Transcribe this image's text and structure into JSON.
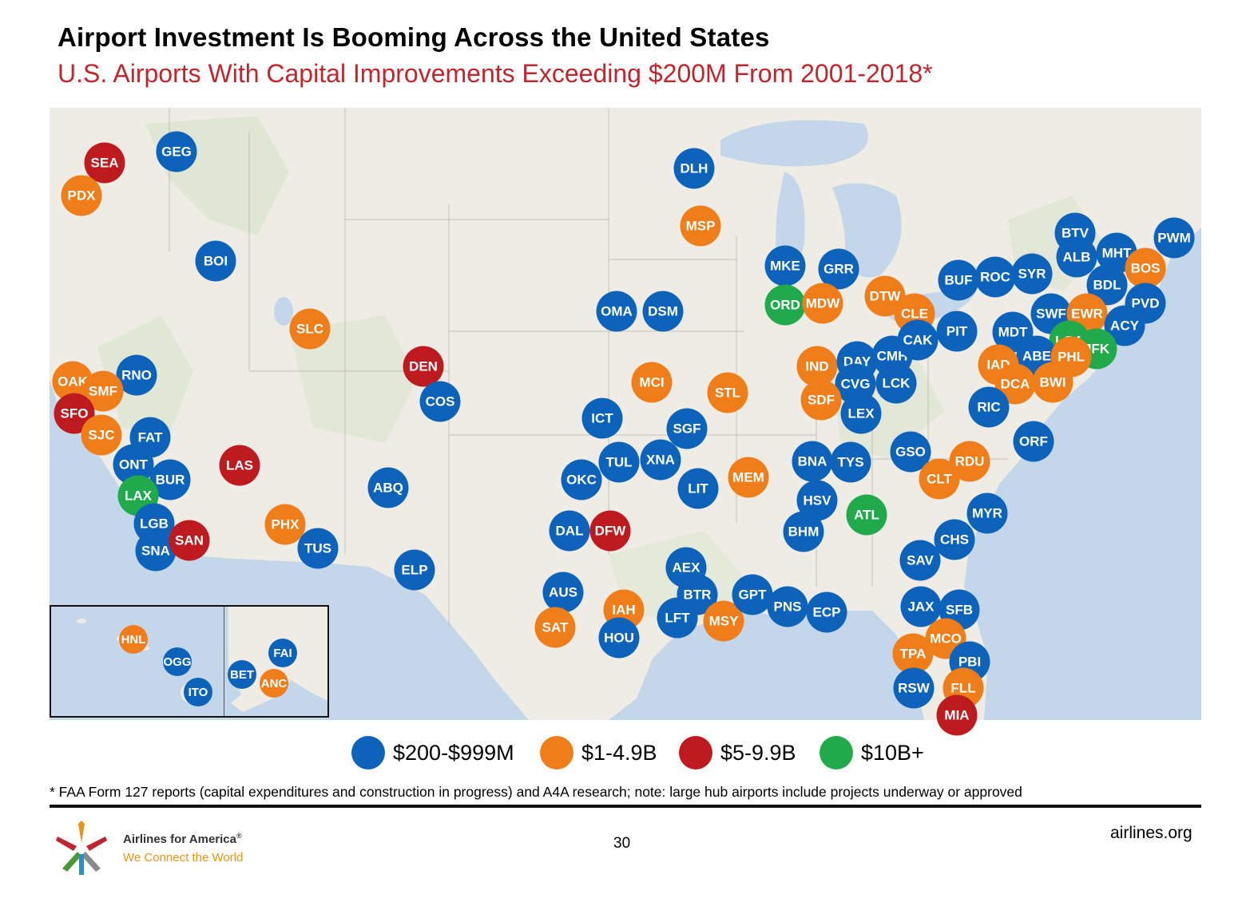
{
  "title": "Airport Investment Is Booming Across the United States",
  "subtitle": "U.S. Airports With Capital Improvements Exceeding $200M From 2001-2018*",
  "categories": {
    "blue": {
      "label": "$200-$999M",
      "color": "#0d63b9"
    },
    "orange": {
      "label": "$1-4.9B",
      "color": "#ef7d1a"
    },
    "red": {
      "label": "$5-9.9B",
      "color": "#bd1b1f"
    },
    "green": {
      "label": "$10B+",
      "color": "#20aa4c"
    }
  },
  "airports": [
    {
      "code": "SEA",
      "cat": "red"
    },
    {
      "code": "GEG",
      "cat": "blue"
    },
    {
      "code": "PDX",
      "cat": "orange"
    },
    {
      "code": "BOI",
      "cat": "blue"
    },
    {
      "code": "SLC",
      "cat": "orange"
    },
    {
      "code": "RNO",
      "cat": "blue"
    },
    {
      "code": "OAK",
      "cat": "orange"
    },
    {
      "code": "SMF",
      "cat": "orange"
    },
    {
      "code": "SFO",
      "cat": "red"
    },
    {
      "code": "SJC",
      "cat": "orange"
    },
    {
      "code": "FAT",
      "cat": "blue"
    },
    {
      "code": "ONT",
      "cat": "blue"
    },
    {
      "code": "BUR",
      "cat": "blue"
    },
    {
      "code": "LAX",
      "cat": "green"
    },
    {
      "code": "LGB",
      "cat": "blue"
    },
    {
      "code": "SNA",
      "cat": "blue"
    },
    {
      "code": "SAN",
      "cat": "red"
    },
    {
      "code": "LAS",
      "cat": "red"
    },
    {
      "code": "PHX",
      "cat": "orange"
    },
    {
      "code": "TUS",
      "cat": "blue"
    },
    {
      "code": "ABQ",
      "cat": "blue"
    },
    {
      "code": "ELP",
      "cat": "blue"
    },
    {
      "code": "DEN",
      "cat": "red"
    },
    {
      "code": "COS",
      "cat": "blue"
    },
    {
      "code": "DLH",
      "cat": "blue"
    },
    {
      "code": "MSP",
      "cat": "orange"
    },
    {
      "code": "OMA",
      "cat": "blue"
    },
    {
      "code": "DSM",
      "cat": "blue"
    },
    {
      "code": "MCI",
      "cat": "orange"
    },
    {
      "code": "STL",
      "cat": "orange"
    },
    {
      "code": "ICT",
      "cat": "blue"
    },
    {
      "code": "SGF",
      "cat": "blue"
    },
    {
      "code": "TUL",
      "cat": "blue"
    },
    {
      "code": "XNA",
      "cat": "blue"
    },
    {
      "code": "OKC",
      "cat": "blue"
    },
    {
      "code": "LIT",
      "cat": "blue"
    },
    {
      "code": "MEM",
      "cat": "orange"
    },
    {
      "code": "DAL",
      "cat": "blue"
    },
    {
      "code": "DFW",
      "cat": "red"
    },
    {
      "code": "AUS",
      "cat": "blue"
    },
    {
      "code": "SAT",
      "cat": "orange"
    },
    {
      "code": "IAH",
      "cat": "orange"
    },
    {
      "code": "HOU",
      "cat": "blue"
    },
    {
      "code": "AEX",
      "cat": "blue"
    },
    {
      "code": "BTR",
      "cat": "blue"
    },
    {
      "code": "LFT",
      "cat": "blue"
    },
    {
      "code": "MSY",
      "cat": "orange"
    },
    {
      "code": "GPT",
      "cat": "blue"
    },
    {
      "code": "PNS",
      "cat": "blue"
    },
    {
      "code": "ECP",
      "cat": "blue"
    },
    {
      "code": "MKE",
      "cat": "blue"
    },
    {
      "code": "GRR",
      "cat": "blue"
    },
    {
      "code": "ORD",
      "cat": "green"
    },
    {
      "code": "MDW",
      "cat": "orange"
    },
    {
      "code": "DTW",
      "cat": "orange"
    },
    {
      "code": "CLE",
      "cat": "orange"
    },
    {
      "code": "IND",
      "cat": "orange"
    },
    {
      "code": "DAY",
      "cat": "blue"
    },
    {
      "code": "CMH",
      "cat": "blue"
    },
    {
      "code": "CAK",
      "cat": "blue"
    },
    {
      "code": "CVG",
      "cat": "blue"
    },
    {
      "code": "LCK",
      "cat": "blue"
    },
    {
      "code": "SDF",
      "cat": "orange"
    },
    {
      "code": "LEX",
      "cat": "blue"
    },
    {
      "code": "BNA",
      "cat": "blue"
    },
    {
      "code": "TYS",
      "cat": "blue"
    },
    {
      "code": "HSV",
      "cat": "blue"
    },
    {
      "code": "BHM",
      "cat": "blue"
    },
    {
      "code": "ATL",
      "cat": "green"
    },
    {
      "code": "GSO",
      "cat": "blue"
    },
    {
      "code": "RDU",
      "cat": "orange"
    },
    {
      "code": "CLT",
      "cat": "orange"
    },
    {
      "code": "PIT",
      "cat": "blue"
    },
    {
      "code": "BUF",
      "cat": "blue"
    },
    {
      "code": "ROC",
      "cat": "blue"
    },
    {
      "code": "SYR",
      "cat": "blue"
    },
    {
      "code": "BTV",
      "cat": "blue"
    },
    {
      "code": "ALB",
      "cat": "blue"
    },
    {
      "code": "MHT",
      "cat": "blue"
    },
    {
      "code": "PWM",
      "cat": "blue"
    },
    {
      "code": "BOS",
      "cat": "orange"
    },
    {
      "code": "BDL",
      "cat": "blue"
    },
    {
      "code": "PVD",
      "cat": "blue"
    },
    {
      "code": "SWF",
      "cat": "blue"
    },
    {
      "code": "EWR",
      "cat": "orange"
    },
    {
      "code": "ACY",
      "cat": "blue"
    },
    {
      "code": "MDT",
      "cat": "blue"
    },
    {
      "code": "LGA",
      "cat": "green"
    },
    {
      "code": "JFK",
      "cat": "green"
    },
    {
      "code": "ABE",
      "cat": "blue"
    },
    {
      "code": "PHL",
      "cat": "orange"
    },
    {
      "code": "IAD",
      "cat": "orange"
    },
    {
      "code": "DCA",
      "cat": "orange"
    },
    {
      "code": "BWI",
      "cat": "orange"
    },
    {
      "code": "RIC",
      "cat": "blue"
    },
    {
      "code": "ORF",
      "cat": "blue"
    },
    {
      "code": "MYR",
      "cat": "blue"
    },
    {
      "code": "CHS",
      "cat": "blue"
    },
    {
      "code": "SAV",
      "cat": "blue"
    },
    {
      "code": "JAX",
      "cat": "blue"
    },
    {
      "code": "SFB",
      "cat": "blue"
    },
    {
      "code": "MCO",
      "cat": "orange"
    },
    {
      "code": "TPA",
      "cat": "orange"
    },
    {
      "code": "PBI",
      "cat": "blue"
    },
    {
      "code": "RSW",
      "cat": "blue"
    },
    {
      "code": "FLL",
      "cat": "orange"
    },
    {
      "code": "MIA",
      "cat": "red"
    }
  ],
  "inset_airports": [
    {
      "code": "HNL",
      "cat": "orange"
    },
    {
      "code": "OGG",
      "cat": "blue"
    },
    {
      "code": "ITO",
      "cat": "blue"
    },
    {
      "code": "FAI",
      "cat": "blue"
    },
    {
      "code": "BET",
      "cat": "blue"
    },
    {
      "code": "ANC",
      "cat": "orange"
    }
  ],
  "footnote": "* FAA Form 127 reports (capital expenditures and construction in progress) and A4A research; note: large hub airports include projects underway or approved",
  "page_number": "30",
  "website": "airlines.org",
  "brand": "Airlines for America",
  "brand_mark": "®",
  "tagline": "We Connect the World"
}
